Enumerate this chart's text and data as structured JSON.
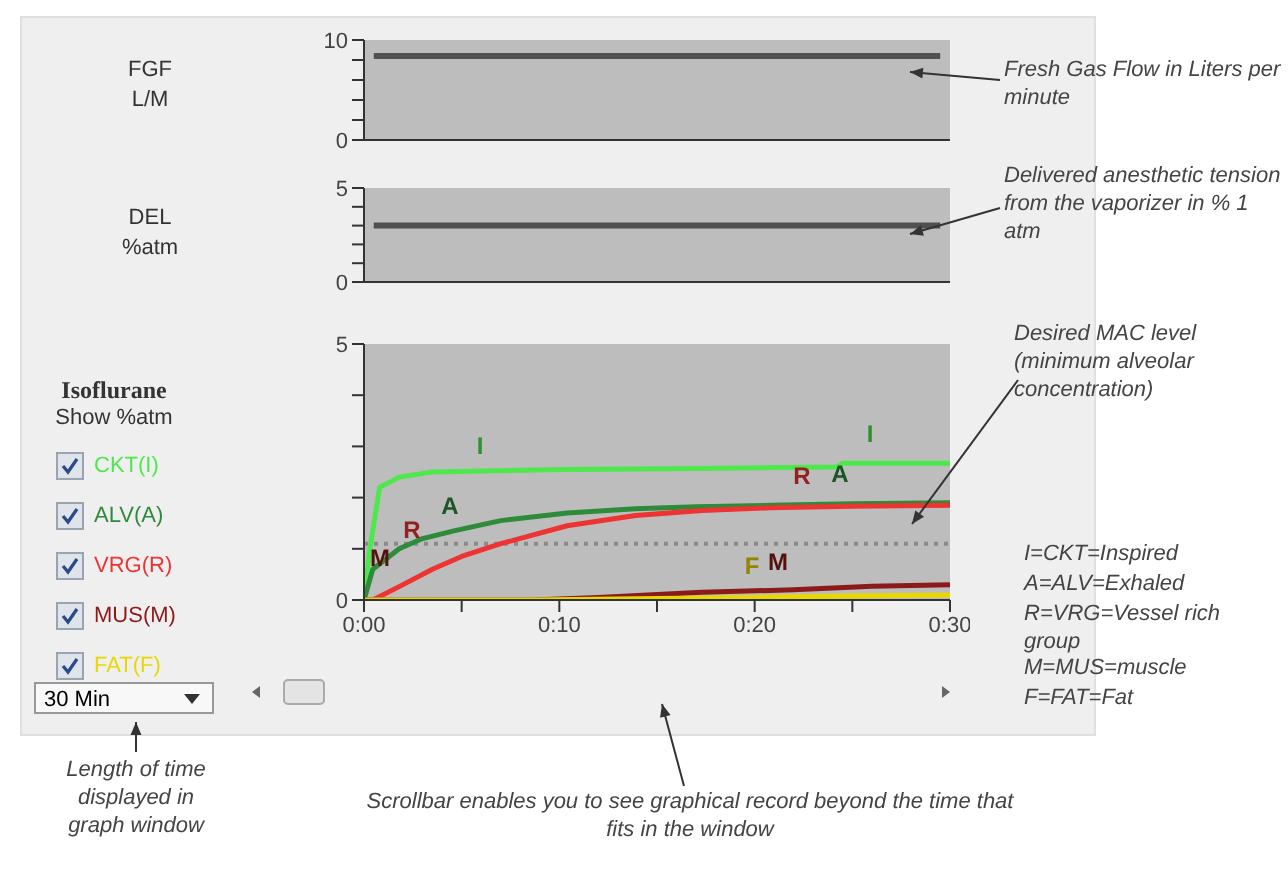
{
  "chart_data": [
    {
      "type": "line",
      "ylabel": "FGF\nL/M",
      "categories": [
        null,
        null,
        null,
        null,
        null,
        null,
        null,
        null,
        null,
        null,
        null,
        null,
        null,
        null,
        null,
        null,
        null,
        null,
        null,
        null,
        null,
        null,
        null,
        null,
        null,
        null,
        null,
        null,
        null,
        null
      ],
      "values": [
        8.4,
        8.4,
        8.4,
        8.4,
        8.4,
        8.4,
        8.4,
        8.4,
        8.4,
        8.4,
        8.4,
        8.4,
        8.4,
        8.4,
        8.4,
        8.4,
        8.4,
        8.4,
        8.4,
        8.4,
        8.4,
        8.4,
        8.4,
        8.4,
        8.4,
        8.4,
        8.4,
        8.4,
        8.4,
        8.4
      ],
      "color": "#505050",
      "ylim": [
        0,
        10
      ],
      "yticks": [
        0,
        {
          "value": 2,
          "label": null
        },
        {
          "value": 4,
          "label": null
        },
        {
          "value": 6,
          "label": null
        },
        {
          "value": 8,
          "label": null
        },
        10
      ],
      "tick_labels": "y",
      "annotations": [
        "Fresh Gas Flow in Liters per minute"
      ]
    },
    {
      "type": "line",
      "ylabel": "DEL\n%atm",
      "categories": [
        null,
        null,
        null,
        null,
        null,
        null,
        null,
        null,
        null,
        null,
        null,
        null,
        null,
        null,
        null,
        null,
        null,
        null,
        null,
        null,
        null,
        null,
        null,
        null,
        null,
        null,
        null,
        null,
        null,
        null
      ],
      "values": [
        3,
        3,
        3,
        3,
        3,
        3,
        3,
        3,
        3,
        3,
        3,
        3,
        3,
        3,
        3,
        3,
        3,
        3,
        3,
        3,
        3,
        3,
        3,
        3,
        3,
        3,
        3,
        3,
        3,
        3
      ],
      "color": "#505050",
      "ylim": [
        0,
        5
      ],
      "yticks": [
        0,
        {
          "value": 1,
          "label": null
        },
        {
          "value": 2,
          "label": null
        },
        {
          "value": 3,
          "label": null
        },
        {
          "value": 4,
          "label": null
        },
        5
      ],
      "tick_labels": "y",
      "annotations": [
        "Delivered anesthetic tension from the vaporizer in % 1 atm"
      ]
    },
    {
      "type": "line",
      "ylabel": "Show %atm",
      "legend_title": "Isoflurane",
      "legend": "left",
      "xlim": [
        0,
        30
      ],
      "ylim": [
        0,
        5
      ],
      "xticks": [
        {
          "value": 0,
          "label": "0:00"
        },
        {
          "value": 5,
          "label": null
        },
        {
          "value": 10,
          "label": "0:10"
        },
        {
          "value": 15,
          "label": null
        },
        {
          "value": 20,
          "label": "0:20"
        },
        {
          "value": 25,
          "label": null
        },
        {
          "value": 30,
          "label": "0:30"
        }
      ],
      "yticks": [
        0,
        {
          "value": 1,
          "label": null
        },
        {
          "value": 2,
          "label": null
        },
        {
          "value": 3,
          "label": null
        },
        {
          "value": 4,
          "label": null
        },
        5
      ],
      "series": [
        {
          "name": "CKT(I)",
          "color": "#4ee84e",
          "x": [
            0,
            0.3,
            0.8,
            1.8,
            3.5,
            6,
            10.4,
            17,
            24.2,
            24.5,
            30
          ],
          "values": [
            0,
            1.0,
            2.2,
            2.4,
            2.5,
            2.52,
            2.55,
            2.57,
            2.6,
            2.67,
            2.67
          ]
        },
        {
          "name": "ALV(A)",
          "color": "#2e8b3a",
          "x": [
            0,
            0.45,
            1.8,
            3,
            4.6,
            7,
            10.4,
            13.9,
            17,
            20.8,
            25,
            30
          ],
          "values": [
            0,
            0.6,
            1.0,
            1.2,
            1.35,
            1.55,
            1.7,
            1.78,
            1.82,
            1.85,
            1.88,
            1.9
          ]
        },
        {
          "name": "VRG(R)",
          "color": "#ee3333",
          "x": [
            0,
            0.45,
            2,
            3.5,
            5,
            7,
            10.4,
            13.9,
            17.3,
            20.8,
            25,
            30
          ],
          "values": [
            0,
            0,
            0.3,
            0.6,
            0.85,
            1.1,
            1.45,
            1.65,
            1.75,
            1.8,
            1.83,
            1.85
          ]
        },
        {
          "name": "MUS(M)",
          "color": "#8b1a1a",
          "x": [
            0,
            8.7,
            12,
            17.3,
            22,
            26,
            30
          ],
          "values": [
            0,
            0,
            0.05,
            0.15,
            0.2,
            0.27,
            0.3
          ]
        },
        {
          "name": "FAT(F)",
          "color": "#e8d800",
          "x": [
            0,
            8.7,
            15,
            20,
            25,
            30
          ],
          "values": [
            0,
            0,
            0.03,
            0.05,
            0.08,
            0.1
          ]
        }
      ],
      "ref_lines": [
        {
          "axis": "y",
          "value": 1.1,
          "color": "#8a8a8a",
          "line_style": "dotted"
        }
      ],
      "annotations": [
        "I",
        "I",
        "R",
        "A",
        "A",
        "R",
        "M",
        "F",
        "M",
        "Desired MAC level (minimum alveolar concentration)",
        "I=CKT=Inspired",
        "A=ALV=Exhaled",
        "R=VRG=Vessel rich group",
        "M=MUS=muscle",
        "F=FAT=Fat",
        "30 Min",
        "Length of time displayed in graph window",
        "Scrollbar enables you to see graphical record beyond the time that fits in the window"
      ]
    }
  ]
}
